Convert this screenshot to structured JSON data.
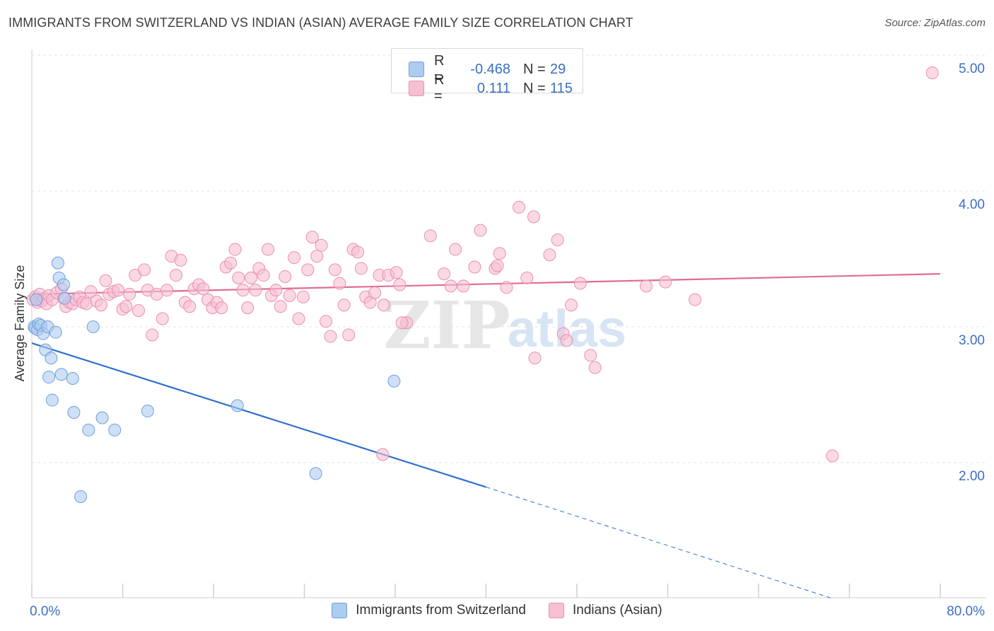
{
  "title": "IMMIGRANTS FROM SWITZERLAND VS INDIAN (ASIAN) AVERAGE FAMILY SIZE CORRELATION CHART",
  "source": "Source: ZipAtlas.com",
  "watermark": {
    "zip": "ZIP",
    "atlas": "atlas"
  },
  "colors": {
    "blue_fill": "#aecbf0",
    "blue_stroke": "#6f9fdc",
    "blue_line": "#2f6fd0",
    "pink_fill": "#f7bfd3",
    "pink_stroke": "#e98fb0",
    "pink_line": "#e06c96",
    "axis_text": "#3b6fc4",
    "grid": "#e3e3e3"
  },
  "legend": {
    "rows": [
      {
        "r_label": "R =",
        "r_value": "-0.468",
        "n_label": "N =",
        "n_value": "29"
      },
      {
        "r_label": "R =",
        "r_value": "0.111",
        "n_label": "N =",
        "n_value": "115"
      }
    ]
  },
  "bottom_legend": {
    "blue": "Immigrants from Switzerland",
    "pink": "Indians (Asian)"
  },
  "chart_data": {
    "type": "scatter",
    "title": "IMMIGRANTS FROM SWITZERLAND VS INDIAN (ASIAN) AVERAGE FAMILY SIZE CORRELATION CHART",
    "xlabel": "",
    "ylabel": "Average Family Size",
    "xlim": [
      0,
      80
    ],
    "ylim": [
      1.0,
      5.2
    ],
    "x_tick_labels": [
      "0.0%",
      "80.0%"
    ],
    "y_ticks": [
      2.0,
      3.0,
      4.0,
      5.0
    ],
    "y_tick_labels": [
      "2.00",
      "3.00",
      "4.00",
      "5.00"
    ],
    "grid": true,
    "series": [
      {
        "name": "Immigrants from Switzerland",
        "color": "#aecbf0",
        "points": [
          [
            0.2,
            3.0
          ],
          [
            0.3,
            2.99
          ],
          [
            0.5,
            2.98
          ],
          [
            0.6,
            3.02
          ],
          [
            0.8,
            3.01
          ],
          [
            1.0,
            2.95
          ],
          [
            1.2,
            2.83
          ],
          [
            1.4,
            3.0
          ],
          [
            1.5,
            2.63
          ],
          [
            1.7,
            2.77
          ],
          [
            1.8,
            2.46
          ],
          [
            2.1,
            2.96
          ],
          [
            2.3,
            3.47
          ],
          [
            2.4,
            3.36
          ],
          [
            2.6,
            2.65
          ],
          [
            2.8,
            3.31
          ],
          [
            2.9,
            3.21
          ],
          [
            3.6,
            2.62
          ],
          [
            3.7,
            2.37
          ],
          [
            4.3,
            1.75
          ],
          [
            5.0,
            2.24
          ],
          [
            5.4,
            3.0
          ],
          [
            6.2,
            2.33
          ],
          [
            7.3,
            2.24
          ],
          [
            10.2,
            2.38
          ],
          [
            18.1,
            2.42
          ],
          [
            25.0,
            1.92
          ],
          [
            31.9,
            2.6
          ],
          [
            0.4,
            3.2
          ]
        ],
        "trend": {
          "x": [
            0,
            40
          ],
          "y": [
            2.88,
            1.82
          ],
          "dashed_extension": {
            "x": [
              40,
              70.5
            ],
            "y": [
              1.82,
              1.0
            ]
          }
        }
      },
      {
        "name": "Indians (Asian)",
        "color": "#f7bfd3",
        "points": [
          [
            0.1,
            3.2
          ],
          [
            0.3,
            3.22
          ],
          [
            0.5,
            3.18
          ],
          [
            0.7,
            3.24
          ],
          [
            0.9,
            3.19
          ],
          [
            1.1,
            3.21
          ],
          [
            1.3,
            3.17
          ],
          [
            1.5,
            3.23
          ],
          [
            1.8,
            3.2
          ],
          [
            2.2,
            3.25
          ],
          [
            2.6,
            3.28
          ],
          [
            2.8,
            3.21
          ],
          [
            3.0,
            3.15
          ],
          [
            3.3,
            3.18
          ],
          [
            3.6,
            3.17
          ],
          [
            3.9,
            3.2
          ],
          [
            4.2,
            3.22
          ],
          [
            4.5,
            3.18
          ],
          [
            4.8,
            3.17
          ],
          [
            5.2,
            3.26
          ],
          [
            5.7,
            3.19
          ],
          [
            6.1,
            3.16
          ],
          [
            6.5,
            3.34
          ],
          [
            6.8,
            3.24
          ],
          [
            7.2,
            3.26
          ],
          [
            7.6,
            3.27
          ],
          [
            8.0,
            3.13
          ],
          [
            8.3,
            3.15
          ],
          [
            8.6,
            3.24
          ],
          [
            9.1,
            3.38
          ],
          [
            9.4,
            3.12
          ],
          [
            9.9,
            3.42
          ],
          [
            10.2,
            3.27
          ],
          [
            10.6,
            2.94
          ],
          [
            11.0,
            3.24
          ],
          [
            11.5,
            3.06
          ],
          [
            11.9,
            3.27
          ],
          [
            12.3,
            3.52
          ],
          [
            12.7,
            3.38
          ],
          [
            13.1,
            3.49
          ],
          [
            13.5,
            3.18
          ],
          [
            13.9,
            3.15
          ],
          [
            14.3,
            3.28
          ],
          [
            14.7,
            3.31
          ],
          [
            15.1,
            3.28
          ],
          [
            15.5,
            3.2
          ],
          [
            15.9,
            3.14
          ],
          [
            16.3,
            3.18
          ],
          [
            16.7,
            3.14
          ],
          [
            17.1,
            3.44
          ],
          [
            17.5,
            3.47
          ],
          [
            17.9,
            3.57
          ],
          [
            18.2,
            3.36
          ],
          [
            18.6,
            3.27
          ],
          [
            19.0,
            3.14
          ],
          [
            19.3,
            3.36
          ],
          [
            19.7,
            3.27
          ],
          [
            20.0,
            3.43
          ],
          [
            20.4,
            3.38
          ],
          [
            20.8,
            3.57
          ],
          [
            21.1,
            3.23
          ],
          [
            21.5,
            3.27
          ],
          [
            21.9,
            3.15
          ],
          [
            22.3,
            3.37
          ],
          [
            22.7,
            3.23
          ],
          [
            23.1,
            3.51
          ],
          [
            23.5,
            3.06
          ],
          [
            23.9,
            3.22
          ],
          [
            24.3,
            3.42
          ],
          [
            24.7,
            3.66
          ],
          [
            25.1,
            3.52
          ],
          [
            25.5,
            3.6
          ],
          [
            25.9,
            3.04
          ],
          [
            26.3,
            2.93
          ],
          [
            26.7,
            3.42
          ],
          [
            27.1,
            3.32
          ],
          [
            27.5,
            3.16
          ],
          [
            27.9,
            2.94
          ],
          [
            28.3,
            3.57
          ],
          [
            28.7,
            3.55
          ],
          [
            29.0,
            3.43
          ],
          [
            29.4,
            3.22
          ],
          [
            29.8,
            3.18
          ],
          [
            30.2,
            3.25
          ],
          [
            30.6,
            3.38
          ],
          [
            31.0,
            3.16
          ],
          [
            31.4,
            3.38
          ],
          [
            32.1,
            3.4
          ],
          [
            32.4,
            3.31
          ],
          [
            33.0,
            3.03
          ],
          [
            32.6,
            3.03
          ],
          [
            30.9,
            2.06
          ],
          [
            35.1,
            3.67
          ],
          [
            36.3,
            3.39
          ],
          [
            36.9,
            3.3
          ],
          [
            37.3,
            3.57
          ],
          [
            38.0,
            3.3
          ],
          [
            39.0,
            3.44
          ],
          [
            39.5,
            3.71
          ],
          [
            40.8,
            3.43
          ],
          [
            41.0,
            3.45
          ],
          [
            41.2,
            3.54
          ],
          [
            41.8,
            3.29
          ],
          [
            42.9,
            3.88
          ],
          [
            43.6,
            3.36
          ],
          [
            44.2,
            3.81
          ],
          [
            44.3,
            2.77
          ],
          [
            45.6,
            3.53
          ],
          [
            46.3,
            3.64
          ],
          [
            46.8,
            2.95
          ],
          [
            47.1,
            2.9
          ],
          [
            47.5,
            3.16
          ],
          [
            48.3,
            3.32
          ],
          [
            49.2,
            2.79
          ],
          [
            49.6,
            2.7
          ],
          [
            54.1,
            3.3
          ],
          [
            55.8,
            3.33
          ],
          [
            58.4,
            3.2
          ],
          [
            70.5,
            2.05
          ],
          [
            79.3,
            4.87
          ]
        ],
        "trend": {
          "x": [
            0,
            80
          ],
          "y": [
            3.24,
            3.39
          ]
        }
      }
    ]
  }
}
